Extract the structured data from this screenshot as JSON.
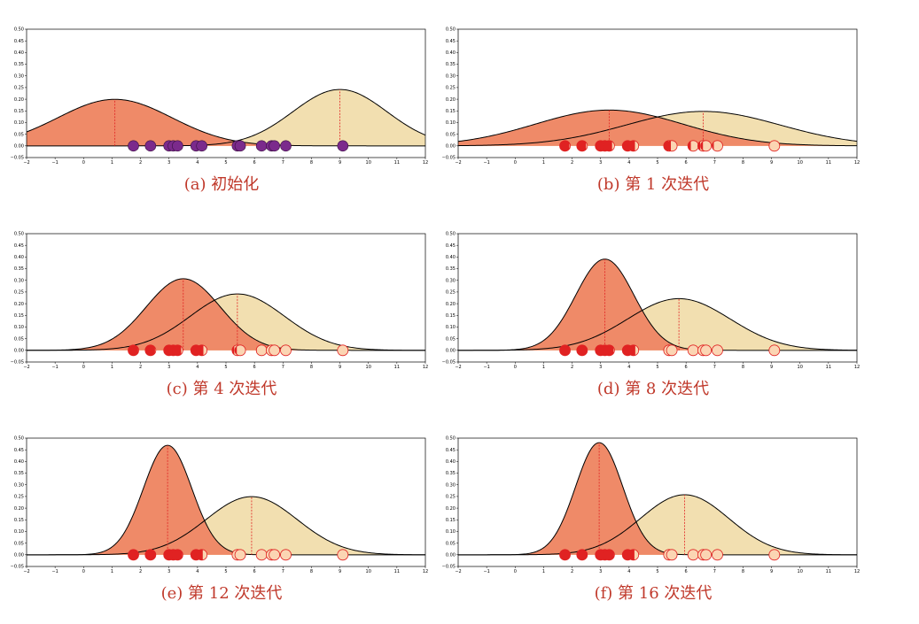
{
  "chart_data": [
    {
      "type": "area",
      "caption": "(a) 初始化",
      "points": [
        1.75,
        2.35,
        3.0,
        3.15,
        3.3,
        3.95,
        4.15,
        5.4,
        5.5,
        6.25,
        6.6,
        6.7,
        7.1,
        9.1
      ],
      "point_style": "uniform",
      "components": [
        {
          "mean": 1.1,
          "std": 2.0,
          "weight": 1.0,
          "color": "#ef8a68"
        },
        {
          "mean": 9.0,
          "std": 1.65,
          "weight": 1.0,
          "color": "#f2dfb0"
        }
      ],
      "xlim": [
        -2,
        12
      ],
      "ylim": [
        -0.05,
        0.5
      ],
      "xticks": [
        -2,
        -1,
        0,
        1,
        2,
        3,
        4,
        5,
        6,
        7,
        8,
        9,
        10,
        11,
        12
      ],
      "yticks": [
        -0.05,
        0.0,
        0.05,
        0.1,
        0.15,
        0.2,
        0.25,
        0.3,
        0.35,
        0.4,
        0.45,
        0.5
      ]
    },
    {
      "type": "area",
      "caption": "(b) 第 1 次迭代",
      "points": [
        1.75,
        2.35,
        3.0,
        3.15,
        3.3,
        3.95,
        4.15,
        5.4,
        5.5,
        6.25,
        6.6,
        6.7,
        7.1,
        9.1
      ],
      "point_style": "split",
      "components": [
        {
          "mean": 3.3,
          "std": 2.6,
          "weight": 1.0,
          "color": "#ef8a68"
        },
        {
          "mean": 6.6,
          "std": 2.7,
          "weight": 1.0,
          "color": "#f2dfb0"
        }
      ],
      "xlim": [
        -2,
        12
      ],
      "ylim": [
        -0.05,
        0.5
      ],
      "xticks": [
        -2,
        -1,
        0,
        1,
        2,
        3,
        4,
        5,
        6,
        7,
        8,
        9,
        10,
        11,
        12
      ],
      "yticks": [
        -0.05,
        0.0,
        0.05,
        0.1,
        0.15,
        0.2,
        0.25,
        0.3,
        0.35,
        0.4,
        0.45,
        0.5
      ]
    },
    {
      "type": "area",
      "caption": "(c) 第 4 次迭代",
      "points": [
        1.75,
        2.35,
        3.0,
        3.15,
        3.3,
        3.95,
        4.15,
        5.4,
        5.5,
        6.25,
        6.6,
        6.7,
        7.1,
        9.1
      ],
      "point_style": "split",
      "components": [
        {
          "mean": 3.5,
          "std": 1.3,
          "weight": 1.0,
          "color": "#ef8a68"
        },
        {
          "mean": 5.4,
          "std": 1.65,
          "weight": 1.0,
          "color": "#f2dfb0"
        }
      ],
      "xlim": [
        -2,
        12
      ],
      "ylim": [
        -0.05,
        0.5
      ],
      "xticks": [
        -2,
        -1,
        0,
        1,
        2,
        3,
        4,
        5,
        6,
        7,
        8,
        9,
        10,
        11,
        12
      ],
      "yticks": [
        -0.05,
        0.0,
        0.05,
        0.1,
        0.15,
        0.2,
        0.25,
        0.3,
        0.35,
        0.4,
        0.45,
        0.5
      ]
    },
    {
      "type": "area",
      "caption": "(d) 第 8 次迭代",
      "points": [
        1.75,
        2.35,
        3.0,
        3.15,
        3.3,
        3.95,
        4.15,
        5.4,
        5.5,
        6.25,
        6.6,
        6.7,
        7.1,
        9.1
      ],
      "point_style": "split",
      "components": [
        {
          "mean": 3.15,
          "std": 1.02,
          "weight": 1.0,
          "color": "#ef8a68"
        },
        {
          "mean": 5.75,
          "std": 1.8,
          "weight": 1.0,
          "color": "#f2dfb0"
        }
      ],
      "xlim": [
        -2,
        12
      ],
      "ylim": [
        -0.05,
        0.5
      ],
      "xticks": [
        -2,
        -1,
        0,
        1,
        2,
        3,
        4,
        5,
        6,
        7,
        8,
        9,
        10,
        11,
        12
      ],
      "yticks": [
        -0.05,
        0.0,
        0.05,
        0.1,
        0.15,
        0.2,
        0.25,
        0.3,
        0.35,
        0.4,
        0.45,
        0.5
      ]
    },
    {
      "type": "area",
      "caption": "(e) 第 12 次迭代",
      "points": [
        1.75,
        2.35,
        3.0,
        3.15,
        3.3,
        3.95,
        4.15,
        5.4,
        5.5,
        6.25,
        6.6,
        6.7,
        7.1,
        9.1
      ],
      "point_style": "split",
      "components": [
        {
          "mean": 2.95,
          "std": 0.85,
          "weight": 1.0,
          "color": "#ef8a68"
        },
        {
          "mean": 5.9,
          "std": 1.6,
          "weight": 1.0,
          "color": "#f2dfb0"
        }
      ],
      "xlim": [
        -2,
        12
      ],
      "ylim": [
        -0.05,
        0.5
      ],
      "xticks": [
        -2,
        -1,
        0,
        1,
        2,
        3,
        4,
        5,
        6,
        7,
        8,
        9,
        10,
        11,
        12
      ],
      "yticks": [
        -0.05,
        0.0,
        0.05,
        0.1,
        0.15,
        0.2,
        0.25,
        0.3,
        0.35,
        0.4,
        0.45,
        0.5
      ]
    },
    {
      "type": "area",
      "caption": "(f) 第 16 次迭代",
      "points": [
        1.75,
        2.35,
        3.0,
        3.15,
        3.3,
        3.95,
        4.15,
        5.4,
        5.5,
        6.25,
        6.6,
        6.7,
        7.1,
        9.1
      ],
      "point_style": "split",
      "components": [
        {
          "mean": 2.95,
          "std": 0.83,
          "weight": 1.0,
          "color": "#ef8a68"
        },
        {
          "mean": 5.95,
          "std": 1.55,
          "weight": 1.0,
          "color": "#f2dfb0"
        }
      ],
      "xlim": [
        -2,
        12
      ],
      "ylim": [
        -0.05,
        0.5
      ],
      "xticks": [
        -2,
        -1,
        0,
        1,
        2,
        3,
        4,
        5,
        6,
        7,
        8,
        9,
        10,
        11,
        12
      ],
      "yticks": [
        -0.05,
        0.0,
        0.05,
        0.1,
        0.15,
        0.2,
        0.25,
        0.3,
        0.35,
        0.4,
        0.45,
        0.5
      ]
    }
  ],
  "colors": {
    "point_uniform": "#7b2a8c",
    "point_fill_light": "#fbd5b3",
    "point_fill_dark": "#e02222",
    "mean_line": "#e02222",
    "caption": "#c0392b"
  }
}
